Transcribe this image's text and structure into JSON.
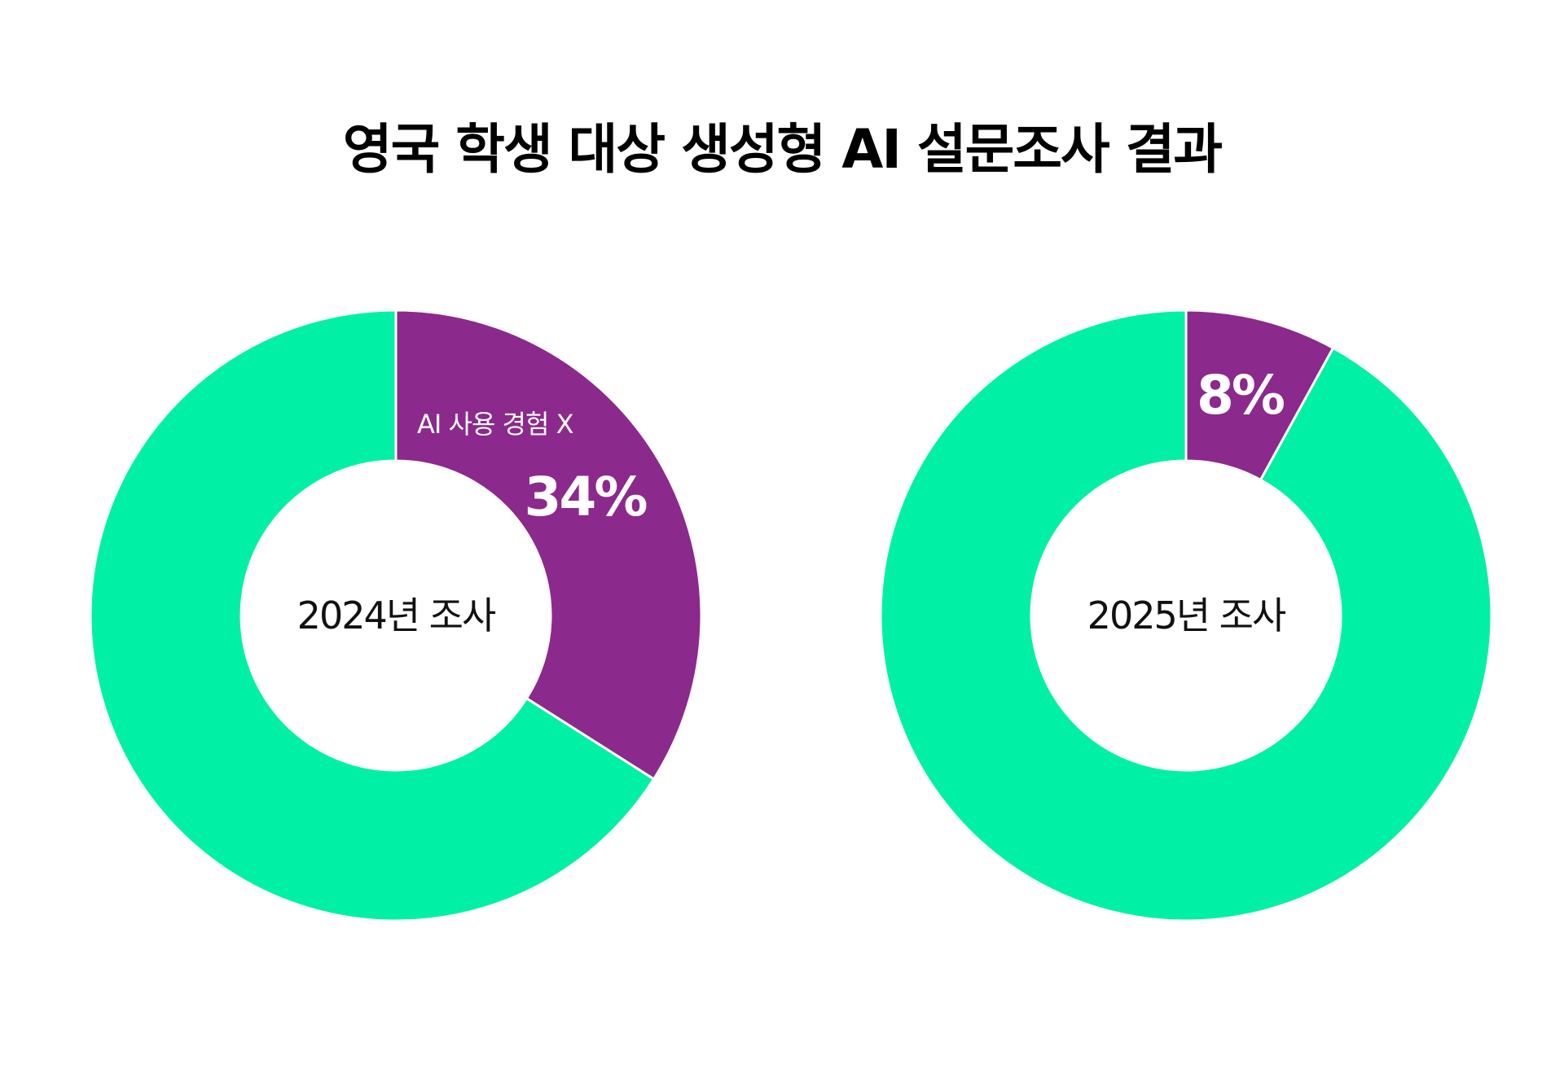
{
  "page": {
    "title": "영국 학생 대상 생성형 AI 설문조사 결과"
  },
  "colors": {
    "accent_purple": "#8C298C",
    "accent_green": "#00F0A6",
    "background": "#FFFFFF"
  },
  "chart_data": [
    {
      "type": "pie",
      "variant": "donut",
      "center_label": "2024년 조사",
      "slices": [
        {
          "label": "AI 사용 경험 X",
          "value": 34,
          "value_label": "34%",
          "color": "#8C298C"
        },
        {
          "label": "",
          "value": 66,
          "value_label": "",
          "color": "#00F0A6"
        }
      ]
    },
    {
      "type": "pie",
      "variant": "donut",
      "center_label": "2025년 조사",
      "slices": [
        {
          "label": "",
          "value": 8,
          "value_label": "8%",
          "color": "#8C298C"
        },
        {
          "label": "",
          "value": 92,
          "value_label": "",
          "color": "#00F0A6"
        }
      ]
    }
  ]
}
